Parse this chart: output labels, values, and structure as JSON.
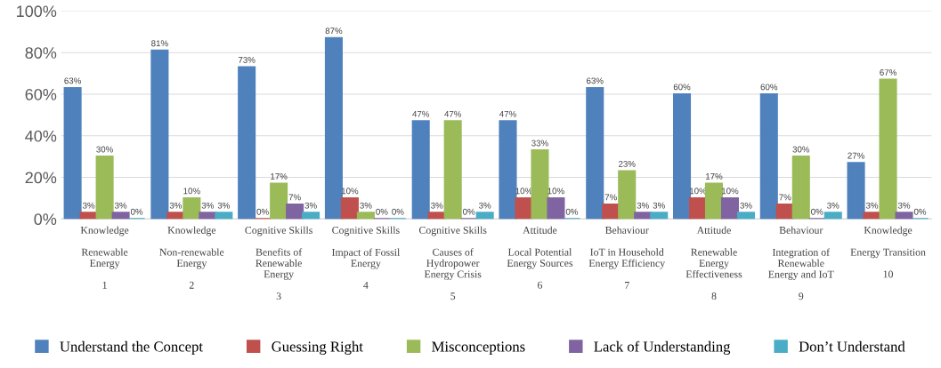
{
  "chart_data": {
    "type": "bar",
    "categories": [
      "Knowledge\n\nRenewable\nEnergy\n\n1",
      "Knowledge\n\nNon-renewable\nEnergy\n\n2",
      "Cognitive Skills\n\nBenefits of\nRenewable\nEnergy\n\n3",
      "Cognitive Skills\n\nImpact of Fossil\nEnergy\n\n4",
      "Cognitive Skills\n\nCauses of\nHydropower\nEnergy Crisis\n\n5",
      "Attitude\n\nLocal Potential\nEnergy Sources\n\n6",
      "Behaviour\n\nIoT in Household\nEnergy Efficiency\n\n7",
      "Attitude\n\nRenewable\nEnergy\nEffectiveness\n\n8",
      "Behaviour\n\nIntegration of\nRenewable\nEnergy and IoT\n\n9",
      "Knowledge\n\nEnergy Transition\n\n10"
    ],
    "series": [
      {
        "name": "Understand the Concept",
        "color": "#4f81bd",
        "values": [
          63,
          81,
          73,
          87,
          47,
          47,
          63,
          60,
          60,
          27
        ],
        "value_labels": [
          "63%",
          "81%",
          "73%",
          "87%",
          "47%",
          "47%",
          "63%",
          "60%",
          "60%",
          "27%"
        ]
      },
      {
        "name": "Guessing Right",
        "color": "#c0504d",
        "values": [
          3,
          3,
          0,
          10,
          3,
          10,
          7,
          10,
          7,
          3
        ],
        "value_labels": [
          "3%",
          "3%",
          "0%",
          "10%",
          "3%",
          "10%",
          "7%",
          "10%",
          "7%",
          "3%"
        ]
      },
      {
        "name": "Misconceptions",
        "color": "#9bbb59",
        "values": [
          30,
          10,
          17,
          3,
          47,
          33,
          23,
          17,
          30,
          67
        ],
        "value_labels": [
          "30%",
          "10%",
          "17%",
          "3%",
          "47%",
          "33%",
          "23%",
          "17%",
          "30%",
          "67%"
        ]
      },
      {
        "name": "Lack of Understanding",
        "color": "#8064a2",
        "values": [
          3,
          3,
          7,
          0,
          0,
          10,
          3,
          10,
          0,
          3
        ],
        "value_labels": [
          "3%",
          "3%",
          "7%",
          "0%",
          "0%",
          "10%",
          "3%",
          "10%",
          "0%",
          "3%"
        ]
      },
      {
        "name": "Don’t Understand",
        "color": "#4bacc6",
        "values": [
          0,
          3,
          3,
          0,
          3,
          0,
          3,
          3,
          3,
          0
        ],
        "value_labels": [
          "0%",
          "3%",
          "3%",
          "0%",
          "3%",
          "0%",
          "3%",
          "3%",
          "3%",
          "0%"
        ]
      }
    ],
    "ylim": [
      0,
      100
    ],
    "yticks": [
      {
        "value": 0,
        "label": "0%"
      },
      {
        "value": 20,
        "label": "20%"
      },
      {
        "value": 40,
        "label": "40%"
      },
      {
        "value": 60,
        "label": "60%"
      },
      {
        "value": 80,
        "label": "80%"
      },
      {
        "value": 100,
        "label": "100%"
      }
    ],
    "grid": "y",
    "legend": "bottom"
  }
}
